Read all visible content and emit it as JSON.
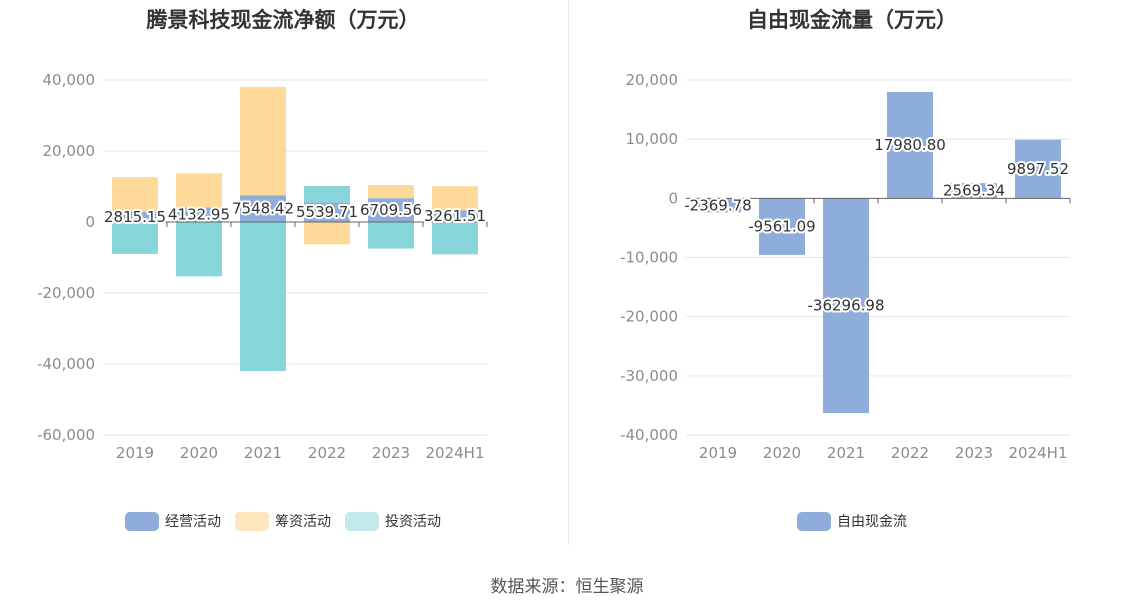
{
  "chart_data": [
    {
      "type": "bar",
      "title": "腾景科技现金流净额（万元）",
      "categories": [
        "2019",
        "2020",
        "2021",
        "2022",
        "2023",
        "2024H1"
      ],
      "ylim": [
        -60000,
        40000
      ],
      "yticks": [
        40000,
        20000,
        0,
        -20000,
        -40000,
        -60000
      ],
      "ytick_labels": [
        "40,000",
        "20,000",
        "0",
        "-20,000",
        "-40,000",
        "-60,000"
      ],
      "grid": true,
      "legend_position": "bottom",
      "series": [
        {
          "name": "经营活动",
          "color": "#8eaddb",
          "values": [
            2815.15,
            4132.95,
            7548.42,
            5539.71,
            6709.56,
            3261.51
          ],
          "labels": [
            "2815.15",
            "4132.95",
            "7548.42",
            "5539.71",
            "6709.56",
            "3261.51"
          ]
        },
        {
          "name": "筹资活动",
          "color": "#ffd999",
          "values": [
            9800,
            9600,
            30500,
            -6300,
            3700,
            6800
          ]
        },
        {
          "name": "投资活动",
          "color": "#88d5da",
          "values": [
            -9000,
            -15300,
            -42000,
            4600,
            -7500,
            -9100
          ]
        }
      ],
      "legend_colors": [
        "#8eaddb",
        "#ffe5bd",
        "#c3e9ec"
      ]
    },
    {
      "type": "bar",
      "title": "自由现金流量（万元）",
      "categories": [
        "2019",
        "2020",
        "2021",
        "2022",
        "2023",
        "2024H1"
      ],
      "ylim": [
        -40000,
        20000
      ],
      "yticks": [
        20000,
        10000,
        0,
        -10000,
        -20000,
        -30000,
        -40000
      ],
      "ytick_labels": [
        "20,000",
        "10,000",
        "0",
        "-10,000",
        "-20,000",
        "-30,000",
        "-40,000"
      ],
      "grid": true,
      "legend_position": "bottom",
      "series": [
        {
          "name": "自由现金流",
          "color": "#8eaddb",
          "values": [
            -2369.78,
            -9561.09,
            -36296.98,
            17980.8,
            2569.34,
            9897.52
          ],
          "labels": [
            "-2369.78",
            "-9561.09",
            "-36296.98",
            "17980.80",
            "2569.34",
            "9897.52"
          ]
        }
      ]
    }
  ],
  "source": "数据来源：恒生聚源"
}
